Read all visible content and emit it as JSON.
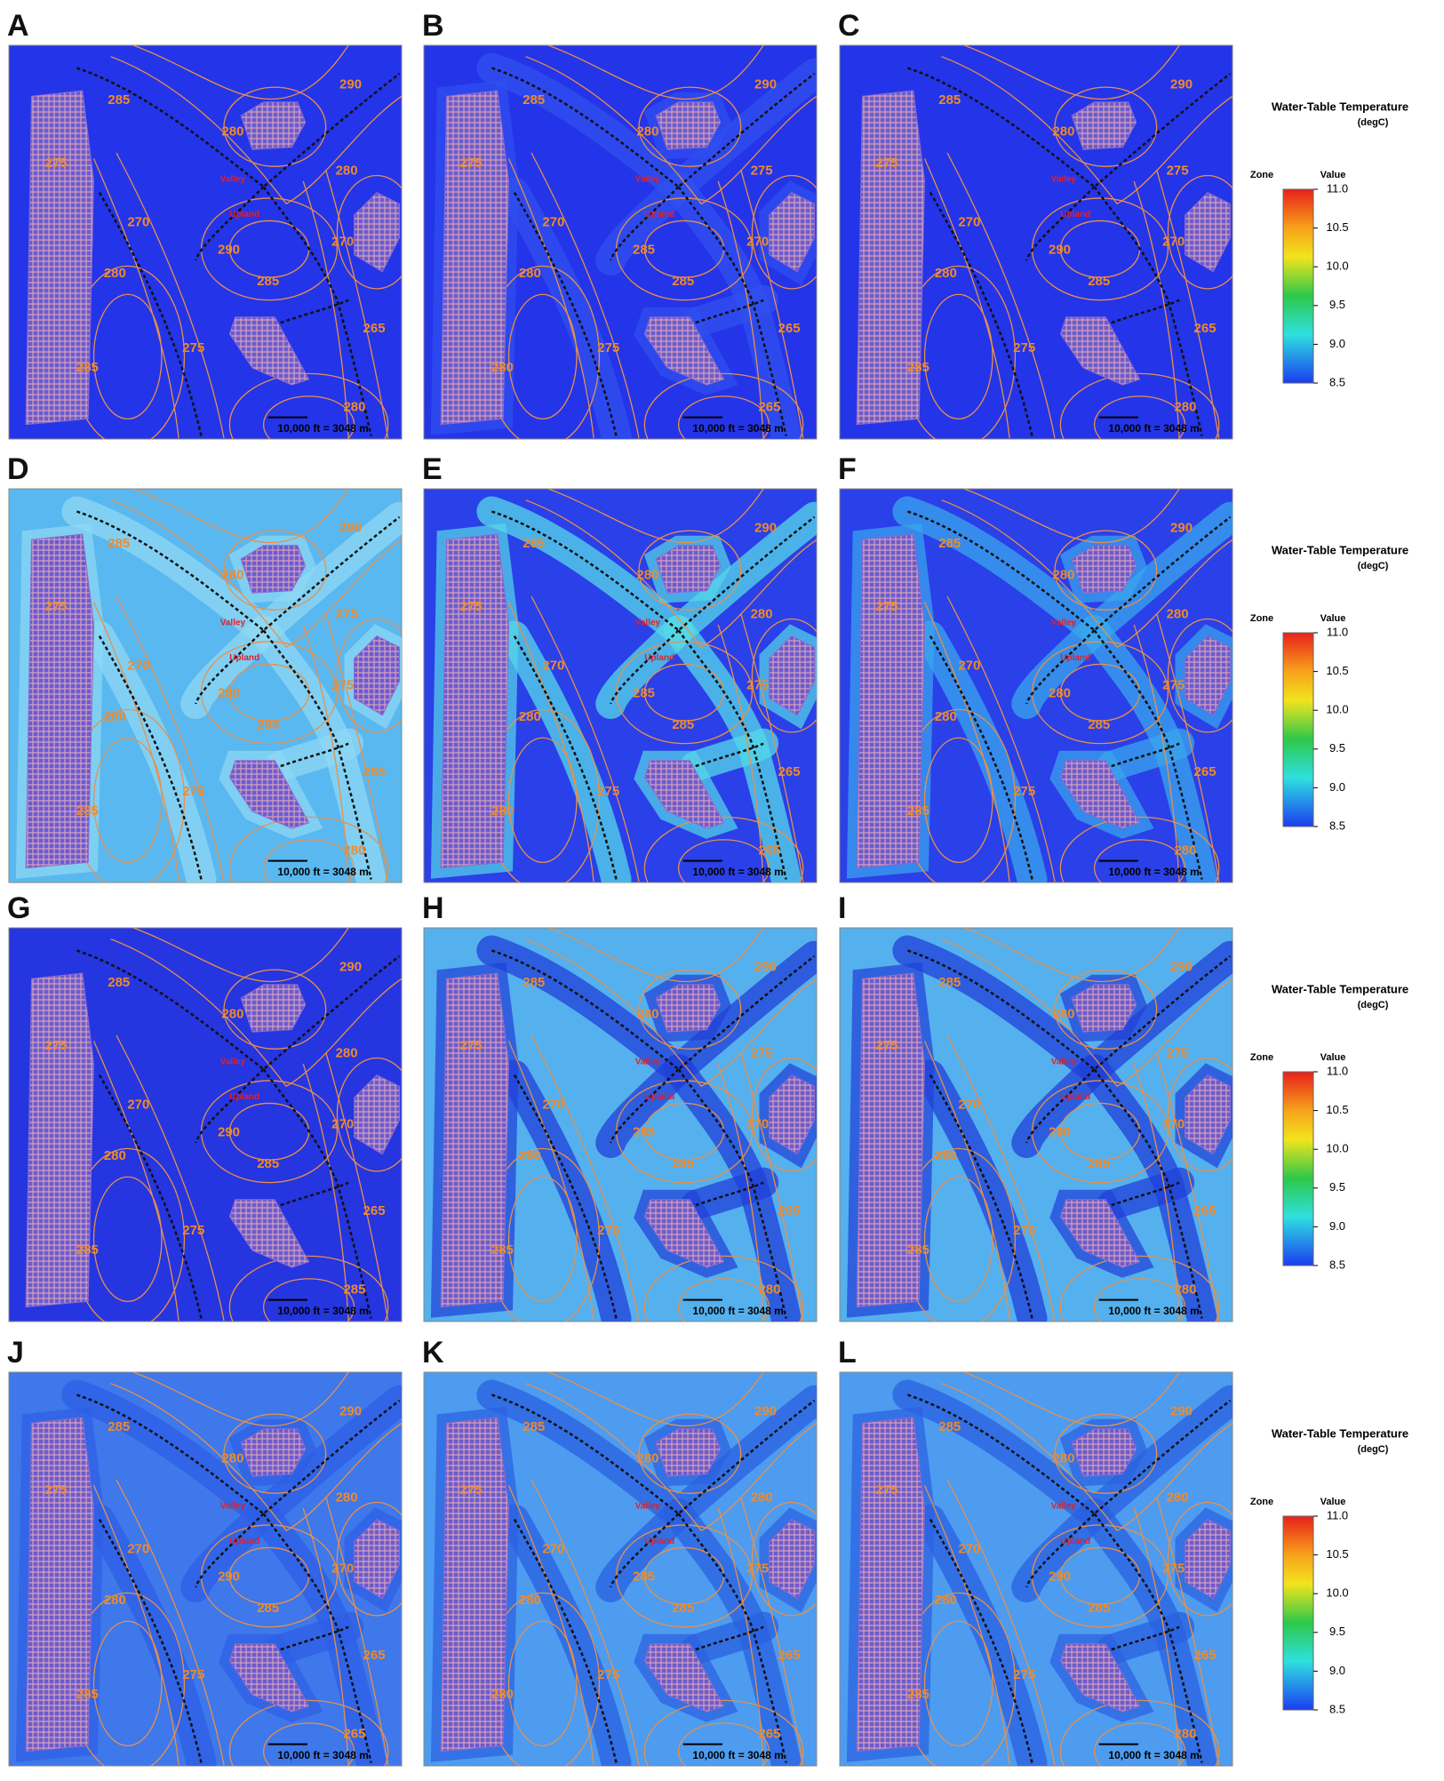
{
  "panels": [
    {
      "label": "A",
      "contour_labels": [
        "290",
        "285",
        "280",
        "280",
        "275",
        "270",
        "290",
        "270",
        "280",
        "285",
        "275",
        "265",
        "285",
        "280"
      ],
      "places": [
        "Valley",
        "Upland"
      ],
      "scale_bar": "10,000 ft = 3048 m"
    },
    {
      "label": "B",
      "contour_labels": [
        "290",
        "285",
        "280",
        "275",
        "275",
        "270",
        "285",
        "270",
        "280",
        "285",
        "275",
        "265",
        "280",
        "265"
      ],
      "places": [
        "Valley",
        "Upland"
      ],
      "scale_bar": "10,000 ft = 3048 m"
    },
    {
      "label": "C",
      "contour_labels": [
        "290",
        "285",
        "280",
        "275",
        "275",
        "270",
        "290",
        "270",
        "280",
        "285",
        "275",
        "265",
        "285",
        "280"
      ],
      "places": [
        "Valley",
        "Upland"
      ],
      "scale_bar": "10,000 ft = 3048 m"
    },
    {
      "label": "D",
      "contour_labels": [
        "290",
        "285",
        "280",
        "275",
        "275",
        "270",
        "280",
        "275",
        "280",
        "285",
        "275",
        "265",
        "285",
        "280"
      ],
      "places": [
        "Valley",
        "Upland"
      ],
      "scale_bar": "10,000 ft = 3048 m"
    },
    {
      "label": "E",
      "contour_labels": [
        "290",
        "285",
        "280",
        "280",
        "275",
        "270",
        "285",
        "275",
        "280",
        "285",
        "275",
        "265",
        "280",
        "265"
      ],
      "places": [
        "Valley",
        "Upland"
      ],
      "scale_bar": "10,000 ft = 3048 m"
    },
    {
      "label": "F",
      "contour_labels": [
        "290",
        "285",
        "280",
        "280",
        "275",
        "270",
        "280",
        "275",
        "280",
        "285",
        "275",
        "265",
        "285",
        "280"
      ],
      "places": [
        "Valley",
        "Upland"
      ],
      "scale_bar": "10,000 ft = 3048 m"
    },
    {
      "label": "G",
      "contour_labels": [
        "290",
        "285",
        "280",
        "280",
        "275",
        "270",
        "290",
        "270",
        "280",
        "285",
        "275",
        "265",
        "285",
        "285"
      ],
      "places": [
        "Valley",
        "Upland"
      ],
      "scale_bar": "10,000 ft = 3048 m"
    },
    {
      "label": "H",
      "contour_labels": [
        "290",
        "285",
        "280",
        "275",
        "275",
        "270",
        "285",
        "270",
        "280",
        "285",
        "275",
        "265",
        "285",
        "280"
      ],
      "places": [
        "Valley",
        "Upland"
      ],
      "scale_bar": "10,000 ft = 3048 m"
    },
    {
      "label": "I",
      "contour_labels": [
        "290",
        "285",
        "280",
        "275",
        "275",
        "270",
        "290",
        "270",
        "280",
        "285",
        "275",
        "265",
        "285",
        "280"
      ],
      "places": [
        "Valley",
        "Upland"
      ],
      "scale_bar": "10,000 ft = 3048 m"
    },
    {
      "label": "J",
      "contour_labels": [
        "290",
        "285",
        "280",
        "280",
        "275",
        "270",
        "290",
        "270",
        "280",
        "285",
        "275",
        "265",
        "285",
        "265"
      ],
      "places": [
        "Valley",
        "Upland"
      ],
      "scale_bar": "10,000 ft = 3048 m"
    },
    {
      "label": "K",
      "contour_labels": [
        "290",
        "285",
        "280",
        "280",
        "275",
        "270",
        "285",
        "275",
        "280",
        "285",
        "275",
        "265",
        "280",
        "265"
      ],
      "places": [
        "Valley",
        "Upland"
      ],
      "scale_bar": "10,000 ft = 3048 m"
    },
    {
      "label": "L",
      "contour_labels": [
        "290",
        "285",
        "280",
        "280",
        "275",
        "270",
        "290",
        "275",
        "280",
        "285",
        "275",
        "265",
        "285",
        "280"
      ],
      "places": [
        "Valley",
        "Upland"
      ],
      "scale_bar": "10,000 ft = 3048 m"
    }
  ],
  "legend": {
    "title": "Water-Table Temperature",
    "unit": "(degC)",
    "zone": "Zone",
    "value": "Value",
    "range": [
      8.5,
      11
    ],
    "ticks": [
      {
        "value": 11,
        "label": "11.0"
      },
      10.5,
      {
        "value": 10,
        "label": "10.0"
      },
      9.5,
      {
        "value": 9,
        "label": "9.0"
      },
      8.5
    ]
  }
}
